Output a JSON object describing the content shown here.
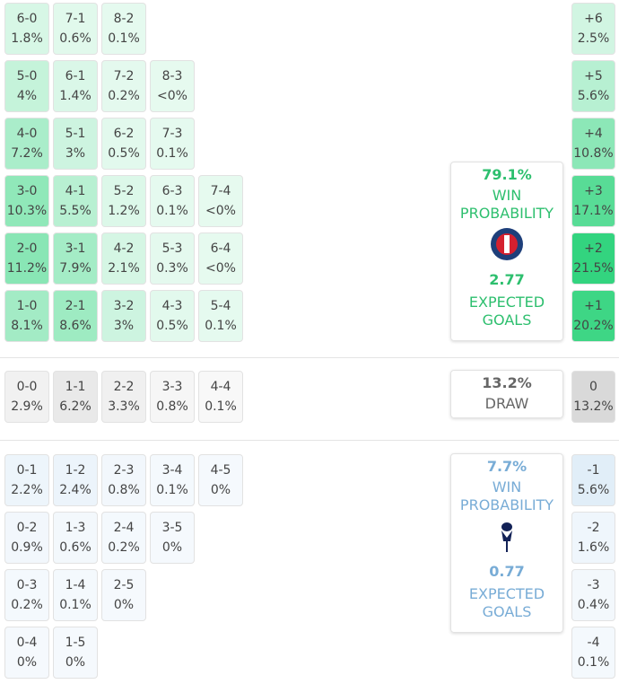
{
  "home": {
    "color": "#2fd37c",
    "rows": [
      [
        {
          "score": "6-0",
          "pct": "1.8%"
        },
        {
          "score": "7-1",
          "pct": "0.6%"
        },
        {
          "score": "8-2",
          "pct": "0.1%"
        }
      ],
      [
        {
          "score": "5-0",
          "pct": "4%"
        },
        {
          "score": "6-1",
          "pct": "1.4%"
        },
        {
          "score": "7-2",
          "pct": "0.2%"
        },
        {
          "score": "8-3",
          "pct": "<0%"
        }
      ],
      [
        {
          "score": "4-0",
          "pct": "7.2%"
        },
        {
          "score": "5-1",
          "pct": "3%"
        },
        {
          "score": "6-2",
          "pct": "0.5%"
        },
        {
          "score": "7-3",
          "pct": "0.1%"
        }
      ],
      [
        {
          "score": "3-0",
          "pct": "10.3%"
        },
        {
          "score": "4-1",
          "pct": "5.5%"
        },
        {
          "score": "5-2",
          "pct": "1.2%"
        },
        {
          "score": "6-3",
          "pct": "0.1%"
        },
        {
          "score": "7-4",
          "pct": "<0%"
        }
      ],
      [
        {
          "score": "2-0",
          "pct": "11.2%"
        },
        {
          "score": "3-1",
          "pct": "7.9%"
        },
        {
          "score": "4-2",
          "pct": "2.1%"
        },
        {
          "score": "5-3",
          "pct": "0.3%"
        },
        {
          "score": "6-4",
          "pct": "<0%"
        }
      ],
      [
        {
          "score": "1-0",
          "pct": "8.1%"
        },
        {
          "score": "2-1",
          "pct": "8.6%"
        },
        {
          "score": "3-2",
          "pct": "3%"
        },
        {
          "score": "4-3",
          "pct": "0.5%"
        },
        {
          "score": "5-4",
          "pct": "0.1%"
        }
      ]
    ],
    "margins": [
      {
        "score": "+6",
        "pct": "2.5%"
      },
      {
        "score": "+5",
        "pct": "5.6%"
      },
      {
        "score": "+4",
        "pct": "10.8%"
      },
      {
        "score": "+3",
        "pct": "17.1%"
      },
      {
        "score": "+2",
        "pct": "21.5%"
      },
      {
        "score": "+1",
        "pct": "20.2%"
      }
    ],
    "card": {
      "win": "79.1%",
      "win_label": "WIN PROBABILITY",
      "xg": "2.77",
      "xg_label": "EXPECTED GOALS"
    }
  },
  "draw": {
    "color": "#c4c4c4",
    "rows": [
      [
        {
          "score": "0-0",
          "pct": "2.9%"
        },
        {
          "score": "1-1",
          "pct": "6.2%"
        },
        {
          "score": "2-2",
          "pct": "3.3%"
        },
        {
          "score": "3-3",
          "pct": "0.8%"
        },
        {
          "score": "4-4",
          "pct": "0.1%"
        }
      ]
    ],
    "margins": [
      {
        "score": "0",
        "pct": "13.2%"
      }
    ],
    "card": {
      "pct": "13.2%",
      "label": "DRAW"
    }
  },
  "away": {
    "color": "#a9cdec",
    "rows": [
      [
        {
          "score": "0-1",
          "pct": "2.2%"
        },
        {
          "score": "1-2",
          "pct": "2.4%"
        },
        {
          "score": "2-3",
          "pct": "0.8%"
        },
        {
          "score": "3-4",
          "pct": "0.1%"
        },
        {
          "score": "4-5",
          "pct": "0%"
        }
      ],
      [
        {
          "score": "0-2",
          "pct": "0.9%"
        },
        {
          "score": "1-3",
          "pct": "0.6%"
        },
        {
          "score": "2-4",
          "pct": "0.2%"
        },
        {
          "score": "3-5",
          "pct": "0%"
        }
      ],
      [
        {
          "score": "0-3",
          "pct": "0.2%"
        },
        {
          "score": "1-4",
          "pct": "0.1%"
        },
        {
          "score": "2-5",
          "pct": "0%"
        }
      ],
      [
        {
          "score": "0-4",
          "pct": "0%"
        },
        {
          "score": "1-5",
          "pct": "0%"
        }
      ]
    ],
    "margins": [
      {
        "score": "-1",
        "pct": "5.6%"
      },
      {
        "score": "-2",
        "pct": "1.6%"
      },
      {
        "score": "-3",
        "pct": "0.4%"
      },
      {
        "score": "-4",
        "pct": "0.1%"
      }
    ],
    "card": {
      "win": "7.7%",
      "win_label": "WIN PROBABILITY",
      "xg": "0.77",
      "xg_label": "EXPECTED GOALS"
    }
  }
}
